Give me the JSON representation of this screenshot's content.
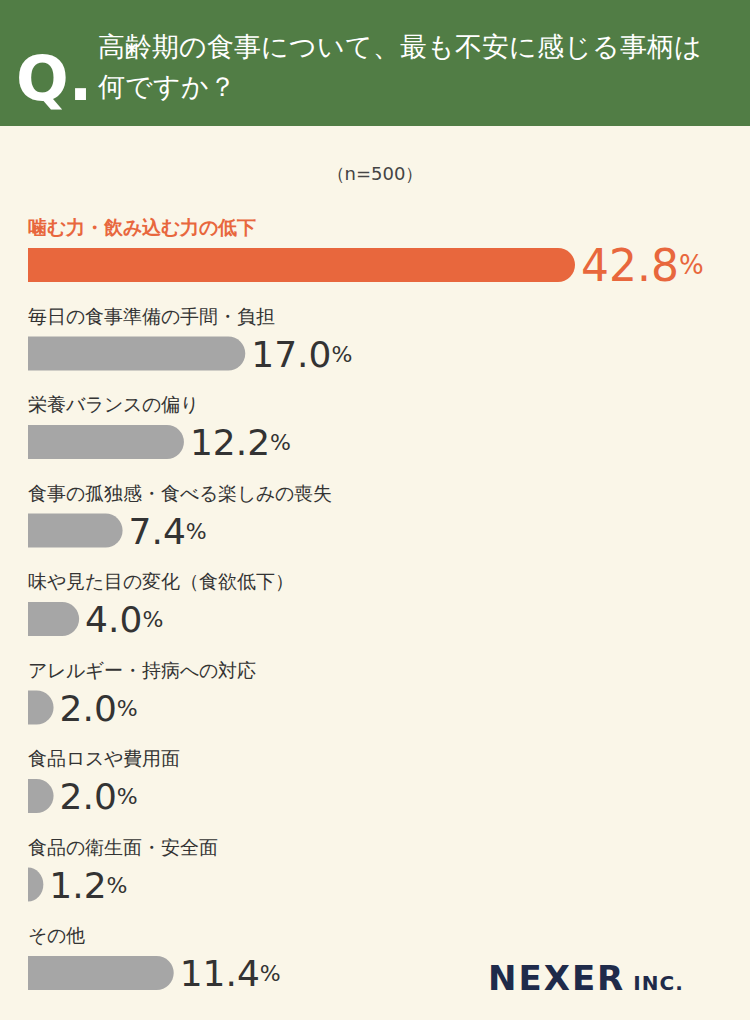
{
  "chart_data": {
    "type": "bar",
    "orientation": "horizontal",
    "title": "高齢期の食事について、最も不安に感じる事柄は何ですか？",
    "subtitle": "（n=500）",
    "annotations": [
      "Q.",
      "NEXER INC."
    ],
    "categories": [
      "噛む力・飲み込む力の低下",
      "毎日の食事準備の手間・負担",
      "栄養バランスの偏り",
      "食事の孤独感・食べる楽しみの喪失",
      "味や見た目の変化（食欲低下）",
      "アレルギー・持病への対応",
      "食品ロスや費用面",
      "食品の衛生面・安全面",
      "その他"
    ],
    "values": [
      42.8,
      17.0,
      12.2,
      7.4,
      4.0,
      2.0,
      2.0,
      1.2,
      11.4
    ],
    "value_labels": [
      "42.8%",
      "17.0%",
      "12.2%",
      "7.4%",
      "4.0%",
      "2.0%",
      "2.0%",
      "1.2%",
      "11.4%"
    ],
    "colors": [
      "#e8673d",
      "#a6a6a6",
      "#a6a6a6",
      "#a6a6a6",
      "#a6a6a6",
      "#a6a6a6",
      "#a6a6a6",
      "#a6a6a6",
      "#a6a6a6"
    ],
    "data_labels": true,
    "tick_labels": false,
    "grid": false
  }
}
